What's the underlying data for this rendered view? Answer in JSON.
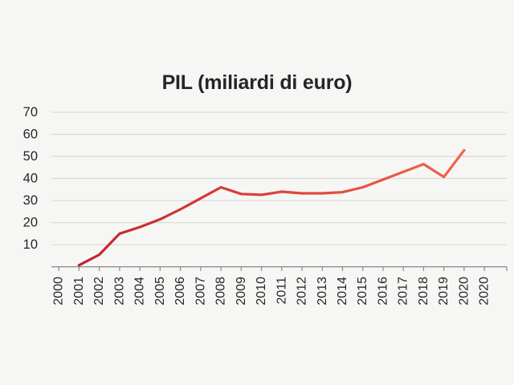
{
  "chart_data": {
    "type": "line",
    "title": "PIL (miliardi di euro)",
    "x_tick_labels": [
      "2000",
      "2001",
      "2002",
      "2003",
      "2004",
      "2005",
      "2006",
      "2007",
      "2008",
      "2009",
      "2010",
      "2011",
      "2012",
      "2013",
      "2014",
      "2015",
      "2016",
      "2017",
      "2018",
      "2019",
      "2020",
      "2020"
    ],
    "x_label_note": "year labels rotated 90deg, reading bottom-to-top; final 2020 label is duplicated in source chart",
    "y_ticks": [
      70,
      60,
      50,
      40,
      30,
      20,
      10
    ],
    "ylim": [
      0,
      70
    ],
    "grid": "horizontal-only",
    "legend": "none",
    "series": [
      {
        "name": "PIL",
        "x": [
          "2001",
          "2002",
          "2003",
          "2004",
          "2005",
          "2006",
          "2007",
          "2008",
          "2009",
          "2010",
          "2011",
          "2012",
          "2013",
          "2014",
          "2015",
          "2016",
          "2017",
          "2018",
          "2019",
          "2020"
        ],
        "values": [
          0.7,
          5.5,
          15,
          18,
          21.5,
          26,
          31,
          36,
          33,
          32.6,
          34,
          33.3,
          33.3,
          33.8,
          36,
          39.5,
          43,
          46.5,
          40.7,
          52.8
        ]
      }
    ]
  },
  "colors": {
    "background": "#f6f6f5",
    "text": "#262626",
    "gridline": "#d9d9d7",
    "axis": "#8a8a8a",
    "line_gradient_start": "#c0242c",
    "line_gradient_end": "#f26548"
  }
}
